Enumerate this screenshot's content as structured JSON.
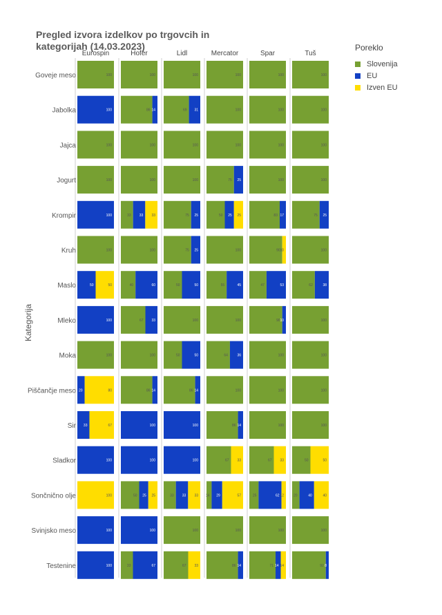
{
  "title": "Pregled izvora izdelkov po trgovcih in\n kategorijah (14.03.2023)",
  "legend": {
    "title": "Poreklo",
    "items": [
      {
        "name": "Slovenija",
        "color": "#77a032"
      },
      {
        "name": "EU",
        "color": "#1240c4"
      },
      {
        "name": "Izven EU",
        "color": "#ffdd00"
      }
    ]
  },
  "chart_data": {
    "type": "bar",
    "orientation": "horizontal-stacked-100",
    "ylabel": "Kategorija",
    "stores": [
      "Eurospin",
      "Hofer",
      "Lidl",
      "Mercator",
      "Spar",
      "Tuš"
    ],
    "categories": [
      "Goveje meso",
      "Jabolka",
      "Jajca",
      "Jogurt",
      "Krompir",
      "Kruh",
      "Maslo",
      "Mleko",
      "Moka",
      "Piščančje meso",
      "Sir",
      "Sladkor",
      "Sončnično olje",
      "Svinjsko meso",
      "Testenine"
    ],
    "series": [
      "Slovenija",
      "EU",
      "Izven EU"
    ],
    "values": {
      "Eurospin": [
        [
          100,
          0,
          0
        ],
        [
          0,
          100,
          0
        ],
        [
          100,
          0,
          0
        ],
        [
          100,
          0,
          0
        ],
        [
          0,
          100,
          0
        ],
        [
          100,
          0,
          0
        ],
        [
          0,
          50,
          50
        ],
        [
          0,
          100,
          0
        ],
        [
          100,
          0,
          0
        ],
        [
          0,
          20,
          80
        ],
        [
          0,
          33,
          67
        ],
        [
          0,
          100,
          0
        ],
        [
          0,
          0,
          100
        ],
        [
          0,
          100,
          0
        ],
        [
          0,
          100,
          0
        ]
      ],
      "Hofer": [
        [
          100,
          0,
          0
        ],
        [
          86,
          14,
          0
        ],
        [
          100,
          0,
          0
        ],
        [
          100,
          0,
          0
        ],
        [
          33,
          33,
          33
        ],
        [
          100,
          0,
          0
        ],
        [
          40,
          60,
          0
        ],
        [
          67,
          33,
          0
        ],
        [
          100,
          0,
          0
        ],
        [
          86,
          14,
          0
        ],
        [
          0,
          100,
          0
        ],
        [
          0,
          100,
          0
        ],
        [
          50,
          25,
          25
        ],
        [
          0,
          100,
          0
        ],
        [
          33,
          67,
          0
        ]
      ],
      "Lidl": [
        [
          100,
          0,
          0
        ],
        [
          69,
          31,
          0
        ],
        [
          100,
          0,
          0
        ],
        [
          100,
          0,
          0
        ],
        [
          75,
          25,
          0
        ],
        [
          75,
          25,
          0
        ],
        [
          50,
          50,
          0
        ],
        [
          100,
          0,
          0
        ],
        [
          50,
          50,
          0
        ],
        [
          86,
          14,
          0
        ],
        [
          0,
          100,
          0
        ],
        [
          0,
          100,
          0
        ],
        [
          33,
          33,
          33
        ],
        [
          100,
          0,
          0
        ],
        [
          67,
          0,
          33
        ]
      ],
      "Mercator": [
        [
          100,
          0,
          0
        ],
        [
          100,
          0,
          0
        ],
        [
          100,
          0,
          0
        ],
        [
          75,
          25,
          0
        ],
        [
          50,
          25,
          25
        ],
        [
          100,
          0,
          0
        ],
        [
          55,
          45,
          0
        ],
        [
          100,
          0,
          0
        ],
        [
          64,
          36,
          0
        ],
        [
          100,
          0,
          0
        ],
        [
          86,
          14,
          0
        ],
        [
          67,
          0,
          33
        ],
        [
          14,
          29,
          57
        ],
        [
          100,
          0,
          0
        ],
        [
          86,
          14,
          0
        ]
      ],
      "Spar": [
        [
          100,
          0,
          0
        ],
        [
          100,
          0,
          0
        ],
        [
          100,
          0,
          0
        ],
        [
          100,
          0,
          0
        ],
        [
          83,
          17,
          0
        ],
        [
          90,
          0,
          10
        ],
        [
          47,
          53,
          0
        ],
        [
          90,
          10,
          0
        ],
        [
          100,
          0,
          0
        ],
        [
          100,
          0,
          0
        ],
        [
          100,
          0,
          0
        ],
        [
          67,
          0,
          33
        ],
        [
          25,
          62,
          12
        ],
        [
          100,
          0,
          0
        ],
        [
          71,
          14,
          14
        ]
      ],
      "Tuš": [
        [
          100,
          0,
          0
        ],
        [
          100,
          0,
          0
        ],
        [
          100,
          0,
          0
        ],
        [
          100,
          0,
          0
        ],
        [
          75,
          25,
          0
        ],
        [
          100,
          0,
          0
        ],
        [
          62,
          38,
          0
        ],
        [
          100,
          0,
          0
        ],
        [
          100,
          0,
          0
        ],
        [
          100,
          0,
          0
        ],
        [
          100,
          0,
          0
        ],
        [
          50,
          0,
          50
        ],
        [
          20,
          40,
          40
        ],
        [
          100,
          0,
          0
        ],
        [
          92,
          8,
          0
        ]
      ]
    }
  }
}
